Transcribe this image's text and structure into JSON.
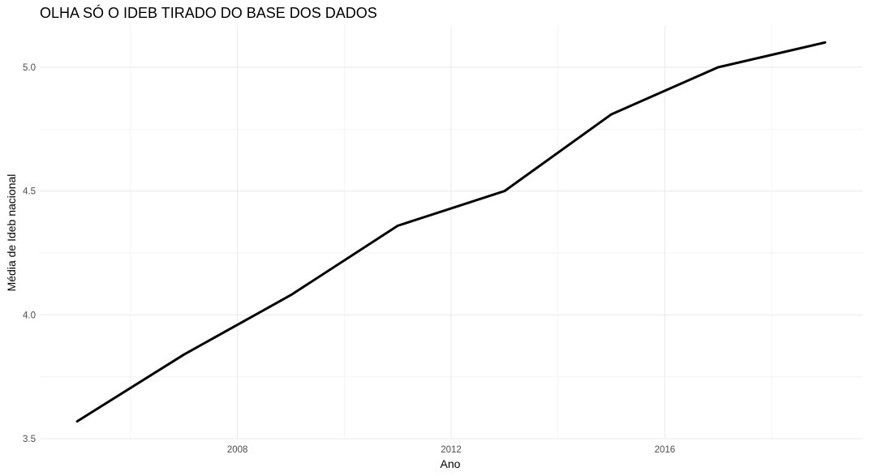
{
  "chart_data": {
    "type": "line",
    "title": "OLHA SÓ O IDEB TIRADO DO BASE DOS DADOS",
    "xlabel": "Ano",
    "ylabel": "Média de Ideb nacional",
    "x": [
      2005,
      2007,
      2009,
      2011,
      2013,
      2015,
      2017,
      2019
    ],
    "series": [
      {
        "values": [
          3.57,
          3.84,
          4.08,
          4.36,
          4.5,
          4.81,
          5.0,
          5.1
        ]
      }
    ],
    "xlim": [
      2004.3,
      2019.7
    ],
    "ylim": [
      3.5,
      5.17
    ],
    "x_ticks": [
      2008,
      2012,
      2016
    ],
    "x_minor_ticks": [
      2006,
      2010,
      2014,
      2018
    ],
    "y_ticks": [
      3.5,
      4.0,
      4.5,
      5.0
    ],
    "y_tick_labels": [
      "3.5",
      "4.0",
      "4.5",
      "5.0"
    ],
    "y_minor_ticks": [
      3.75,
      4.25,
      4.75
    ],
    "grid": true,
    "legend": "none",
    "line_color": "#000000"
  }
}
